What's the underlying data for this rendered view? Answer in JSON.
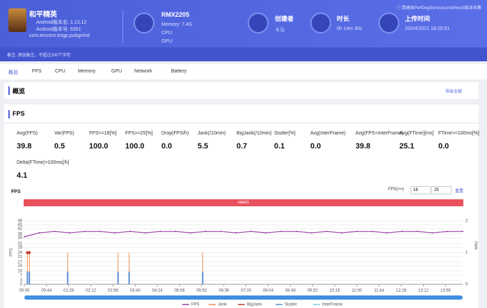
{
  "header": {
    "game": "和平精英",
    "android_version_name": "Android版本名: 1.13.12",
    "android_version_code": "Android版本号: 8351",
    "package": "com.tencent.tmgp.pubgmhd",
    "device": "RMX2205",
    "memory": "Memory: 7.4G",
    "cpu": "CPU:",
    "gpu": "GPU:",
    "creator_label": "创建者",
    "creator": "卡马",
    "duration_label": "时长",
    "duration": "0h 14m 30s",
    "upload_label": "上传时间",
    "upload_time": "20/04/2021 18:25:51",
    "source_note": "ⓘ 数据由PerfDogService(undefined)版本收集"
  },
  "note": "备注: 添加备注，不超过200个字符",
  "tabs": [
    "概览",
    "FPS",
    "CPU",
    "Memory",
    "GPU",
    "Network",
    "Battery"
  ],
  "overview": {
    "title": "概览",
    "export": "导出全部"
  },
  "fps_section": {
    "title": "FPS",
    "stats": [
      {
        "label": "Avg(FPS)",
        "value": "39.8"
      },
      {
        "label": "Var(FPS)",
        "value": "0.5"
      },
      {
        "label": "FPS>=18[%]",
        "value": "100.0"
      },
      {
        "label": "FPS>=25[%]",
        "value": "100.0"
      },
      {
        "label": "Drop(FPS/h)",
        "value": "0.0"
      },
      {
        "label": "Jank(/10min)",
        "value": "5.5"
      },
      {
        "label": "BigJank(/10min)",
        "value": "0.7"
      },
      {
        "label": "Stutter[%]",
        "value": "0.1"
      },
      {
        "label": "Avg(InterFrame)",
        "value": "0.0"
      },
      {
        "label": "Avg(FPS+InterFrame)",
        "value": "39.8"
      },
      {
        "label": "Avg(FTime)[ms]",
        "value": "25.1"
      },
      {
        "label": "FTime>=100ms[%]",
        "value": "0.0"
      },
      {
        "label": "Delta(FTime)>100ms[/h]",
        "value": "4.1"
      }
    ],
    "threshold_label": "FPS(>=)",
    "thresholds": [
      "18",
      "25"
    ],
    "reset": "重置",
    "band_label": "label1"
  },
  "chart_data": {
    "type": "line",
    "title": "FPS",
    "y_label": "FPS",
    "y2_label": "Jank",
    "xlim": [
      0,
      870
    ],
    "ylim": [
      0,
      48
    ],
    "y2lim": [
      0,
      2
    ],
    "xticks": [
      {
        "value": 0,
        "label": "00:00"
      },
      {
        "value": 44,
        "label": "00:44"
      },
      {
        "value": 88,
        "label": "01:28"
      },
      {
        "value": 132,
        "label": "02:12"
      },
      {
        "value": 176,
        "label": "02:56"
      },
      {
        "value": 220,
        "label": "03:40"
      },
      {
        "value": 264,
        "label": "04:24"
      },
      {
        "value": 308,
        "label": "05:08"
      },
      {
        "value": 352,
        "label": "05:52"
      },
      {
        "value": 396,
        "label": "06:36"
      },
      {
        "value": 440,
        "label": "07:20"
      },
      {
        "value": 484,
        "label": "08:04"
      },
      {
        "value": 528,
        "label": "08:48"
      },
      {
        "value": 572,
        "label": "09:32"
      },
      {
        "value": 616,
        "label": "10:16"
      },
      {
        "value": 660,
        "label": "11:00"
      },
      {
        "value": 704,
        "label": "11:44"
      },
      {
        "value": 748,
        "label": "12:28"
      },
      {
        "value": 792,
        "label": "13:12"
      },
      {
        "value": 836,
        "label": "13:56"
      }
    ],
    "yticks": [
      0,
      3,
      7,
      10,
      14,
      17,
      21,
      24,
      28,
      31,
      35,
      38,
      42,
      45,
      48
    ],
    "y2ticks": [
      0,
      1,
      2
    ],
    "grid": true,
    "series": [
      {
        "name": "FPS",
        "color": "#9b3fa8",
        "x": [
          0,
          30,
          60,
          90,
          120,
          150,
          180,
          210,
          240,
          270,
          300,
          330,
          360,
          390,
          420,
          450,
          480,
          510,
          540,
          570,
          600,
          630,
          660,
          690,
          720,
          750,
          780,
          810,
          840,
          870
        ],
        "values": [
          36,
          39,
          40,
          39,
          40,
          40,
          39,
          40,
          39,
          40,
          40,
          39,
          40,
          40,
          39,
          40,
          39,
          40,
          40,
          39,
          40,
          39,
          40,
          40,
          39,
          40,
          40,
          39,
          40,
          40
        ]
      },
      {
        "name": "Jank",
        "color": "#f08a4b",
        "axis": "y2",
        "x": [
          6,
          10,
          86,
          186,
          208,
          354
        ],
        "values": [
          1,
          1,
          1,
          1,
          1,
          1
        ]
      },
      {
        "name": "BigJank",
        "color": "#c0392b",
        "axis": "y2",
        "x": [
          6,
          10
        ],
        "values": [
          1,
          1
        ]
      },
      {
        "name": "Stutter",
        "color": "#5b8fd6",
        "axis": "y2",
        "x": [
          6,
          10,
          86,
          186,
          208,
          354
        ],
        "values": [
          0.4,
          0.4,
          0.4,
          0.4,
          0.4,
          0.4
        ]
      },
      {
        "name": "InterFrame",
        "color": "#7fc4e8",
        "axis": "y2",
        "x": [],
        "values": []
      }
    ]
  }
}
